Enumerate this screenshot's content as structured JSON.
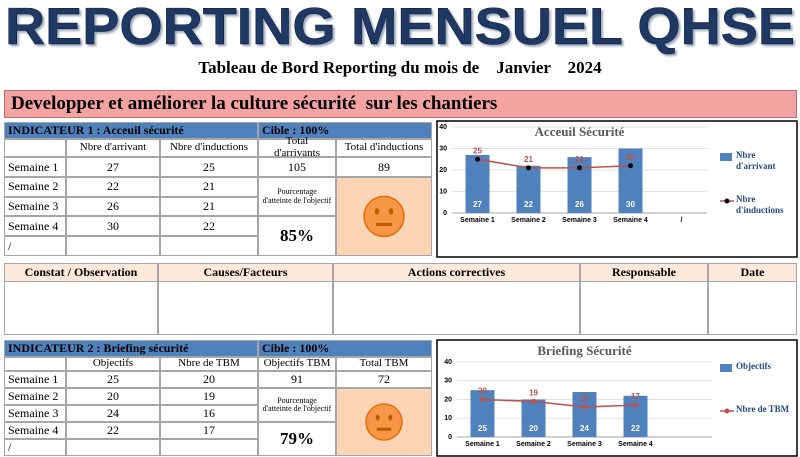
{
  "header": {
    "title": "REPORTING MENSUEL QHSE"
  },
  "subtitle": {
    "text": "Tableau de Bord Reporting du mois de",
    "month": "Janvier",
    "year": "2024"
  },
  "banner": "Developper et améliorer la culture sécurité  sur les chantiers",
  "indicator1": {
    "title": "INDICATEUR 1 :  Acceuil sécurité",
    "target": "Cible : 100%",
    "headers": [
      "Nbre d'arrivant",
      "Nbre d'inductions",
      "Total d'arrivants",
      "Total d'inductions"
    ],
    "rows": [
      [
        "Semaine 1",
        27,
        25
      ],
      [
        "Semaine 2",
        22,
        21
      ],
      [
        "Semaine 3",
        26,
        21
      ],
      [
        "Semaine 4",
        30,
        22
      ],
      [
        "/"
      ]
    ],
    "totals": [
      105,
      89
    ],
    "percentage_label": "Pourcentage d'atteinte de l'objectif",
    "percentage": "85%",
    "chart": {
      "type": "bar",
      "title": "Acceuil Sécurité",
      "categories": [
        "Semaine 1",
        "Semaine 2",
        "Semaine 3",
        "Semaine 4",
        "/"
      ],
      "series": [
        {
          "name": "Nbre d'arrivant",
          "type": "bar",
          "color": "#4f81bd",
          "values": [
            27,
            22,
            26,
            30,
            null
          ]
        },
        {
          "name": "Nbre d'inductions",
          "type": "line",
          "color": "#c0504d",
          "marker_color": "#000000",
          "values": [
            25,
            21,
            21,
            22,
            null
          ]
        }
      ],
      "ylim": [
        0,
        40
      ],
      "yticks": [
        0,
        10,
        20,
        30,
        40
      ],
      "grid": true,
      "legend": "right"
    }
  },
  "observation_table": {
    "headers": [
      "Constat / Observation",
      "Causes/Facteurs",
      "Actions correctives",
      "Responsable",
      "Date"
    ]
  },
  "indicator2": {
    "title": "INDICATEUR 2 :  Briefing sécurité",
    "target": "Cible : 100%",
    "headers": [
      "Objectifs",
      "Nbre de TBM",
      "Objectifs TBM",
      "Total TBM"
    ],
    "rows": [
      [
        "Semaine 1",
        25,
        20
      ],
      [
        "Semaine 2",
        20,
        19
      ],
      [
        "Semaine 3",
        24,
        16
      ],
      [
        "Semaine 4",
        22,
        17
      ],
      [
        "/"
      ]
    ],
    "totals": [
      91,
      72
    ],
    "percentage_label": "Pourcentage d'atteinte de l'objectif",
    "percentage": "79%",
    "chart": {
      "type": "bar",
      "title": "Briefing Sécurité",
      "categories": [
        "Semaine 1",
        "Semaine 2",
        "Semaine 3",
        "Semaine 4",
        null
      ],
      "series": [
        {
          "name": "Objectifs",
          "type": "bar",
          "color": "#4f81bd",
          "values": [
            25,
            20,
            24,
            22,
            null
          ]
        },
        {
          "name": "Nbre de TBM",
          "type": "line",
          "color": "#c0504d",
          "marker_color": "#c0504d",
          "values": [
            20,
            19,
            16,
            17,
            null
          ]
        }
      ],
      "ylim": [
        0,
        40
      ],
      "yticks": [
        0,
        10,
        20,
        30,
        40
      ],
      "grid": true,
      "legend": "right"
    }
  }
}
